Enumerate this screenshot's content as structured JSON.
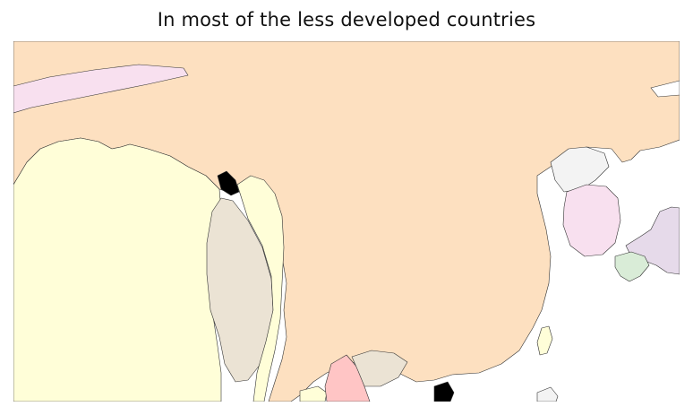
{
  "title": "In most of the less developed countries",
  "map": {
    "projection_view": "East and South Asia (distorted cartogram)",
    "background_color": "#ffffff",
    "regions": [
      {
        "id": "china",
        "fill": "#fde0c0"
      },
      {
        "id": "india",
        "fill": "#fffed8"
      },
      {
        "id": "myanmar",
        "fill": "#ebe3d4"
      },
      {
        "id": "thailand",
        "fill": "#fffed8"
      },
      {
        "id": "korea",
        "fill": "#f8e0ef"
      },
      {
        "id": "north-korea",
        "fill": "#f3f3f3"
      },
      {
        "id": "japan",
        "fill": "#e6daea"
      },
      {
        "id": "central-asia-strip",
        "fill": "#f8e0ef"
      },
      {
        "id": "bangladesh-area",
        "fill": "#d9ecd7"
      },
      {
        "id": "vietnam",
        "fill": "#ffc5c5"
      },
      {
        "id": "laos",
        "fill": "#ebe3d4"
      },
      {
        "id": "taiwan",
        "fill": "#fffed8"
      },
      {
        "id": "philippines-fragment",
        "fill": "#d9ecd7"
      },
      {
        "id": "small-island",
        "fill": "#f3f3f3"
      }
    ]
  }
}
